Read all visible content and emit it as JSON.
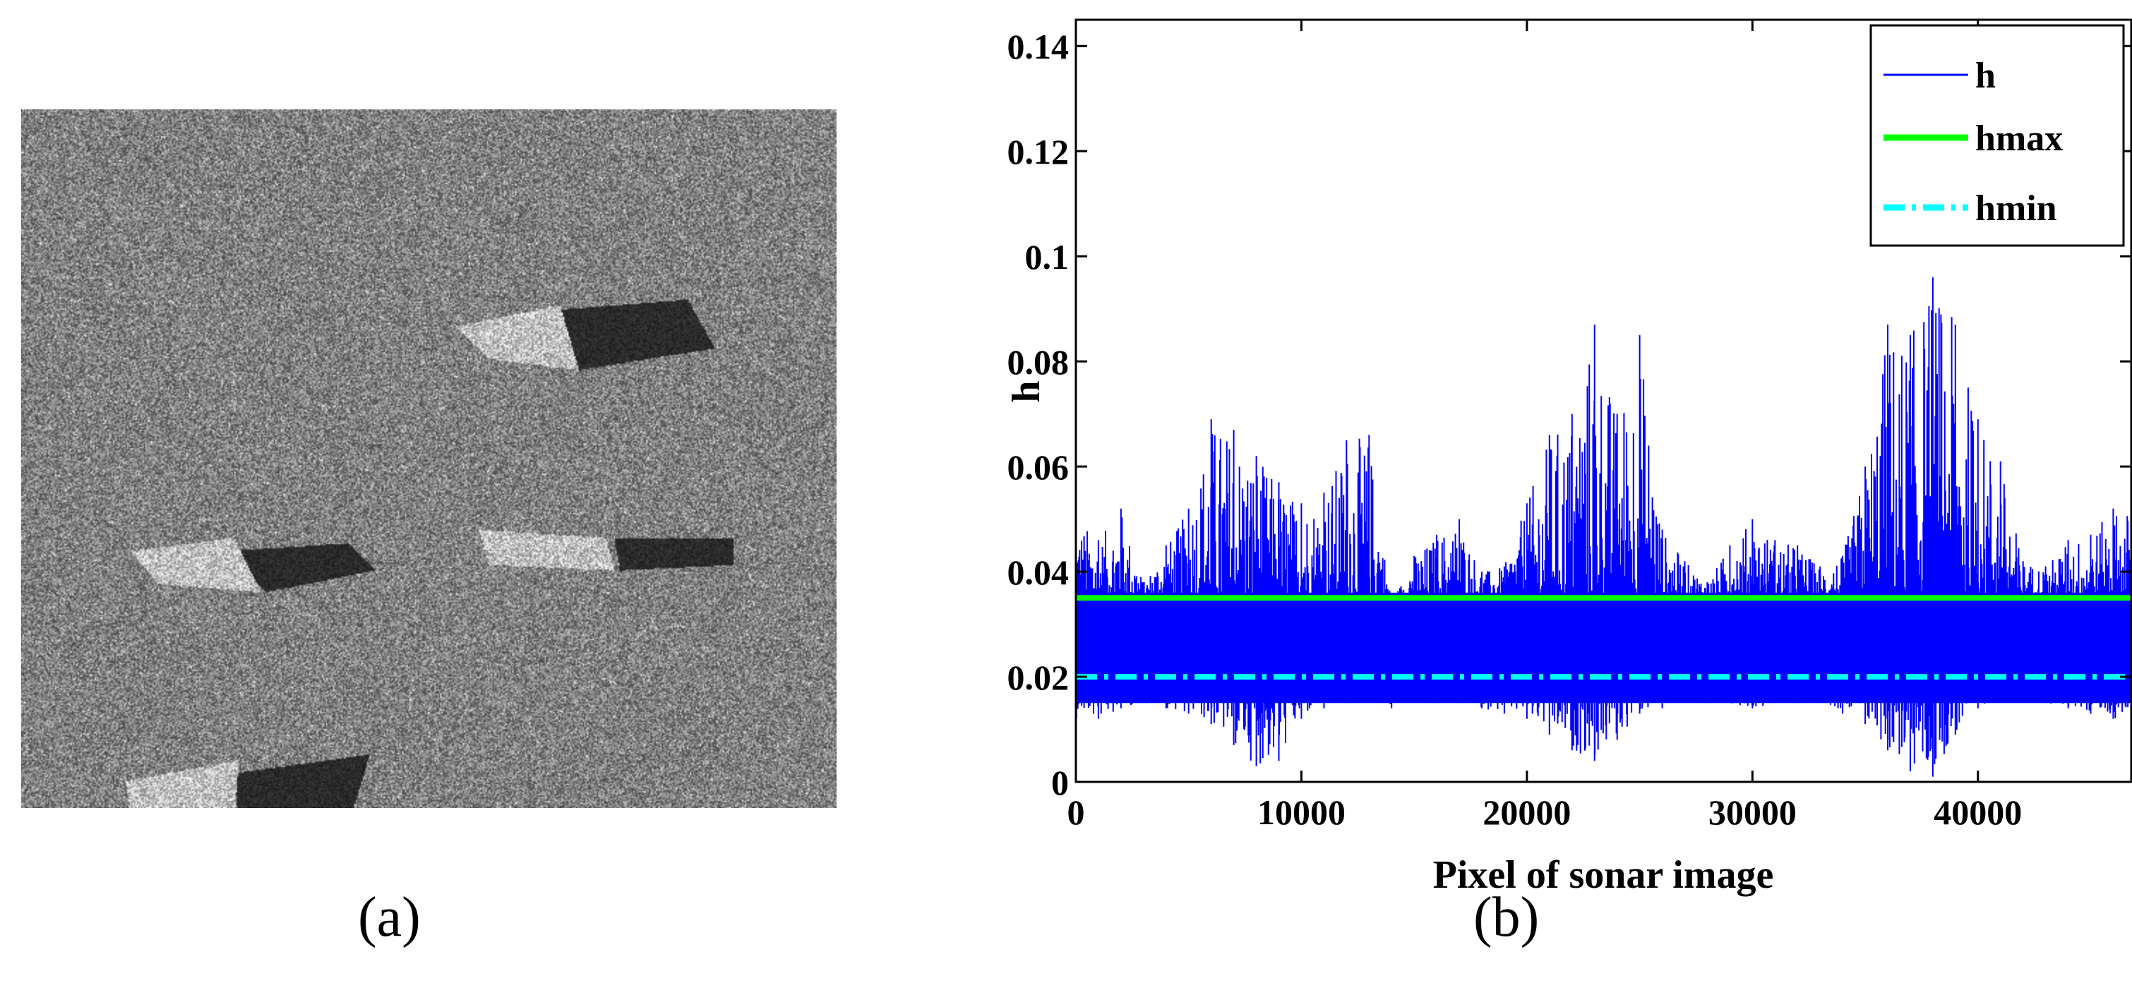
{
  "panels": {
    "a": {
      "caption": "(a)"
    },
    "b": {
      "caption": "(b)"
    }
  },
  "chart_data": {
    "type": "line",
    "title": "",
    "xlabel": "Pixel of sonar image",
    "ylabel": "h",
    "xlim": [
      0,
      46800
    ],
    "ylim": [
      0,
      0.145
    ],
    "xticks": [
      0,
      10000,
      20000,
      30000,
      40000
    ],
    "xtick_labels": [
      "0",
      "10000",
      "20000",
      "30000",
      "40000"
    ],
    "yticks": [
      0,
      0.02,
      0.04,
      0.06,
      0.08,
      0.1,
      0.12,
      0.14
    ],
    "ytick_labels": [
      "0",
      "0.02",
      "0.04",
      "0.06",
      "0.08",
      "0.1",
      "0.12",
      "0.14"
    ],
    "legend_position": "top-right",
    "series": [
      {
        "name": "h",
        "style": "thin-solid",
        "color": "#0000ff",
        "envelope_x": [
          0,
          1000,
          2000,
          3000,
          4000,
          5000,
          6000,
          7000,
          8000,
          9000,
          10000,
          11000,
          12000,
          13000,
          14000,
          15000,
          16000,
          17000,
          18000,
          19000,
          20000,
          21000,
          22000,
          23000,
          24000,
          25000,
          26000,
          27000,
          28000,
          29000,
          30000,
          31000,
          32000,
          33000,
          34000,
          35000,
          36000,
          37000,
          38000,
          39000,
          40000,
          41000,
          42000,
          43000,
          44000,
          45000,
          46000
        ],
        "envelope_upper": [
          0.051,
          0.046,
          0.052,
          0.038,
          0.045,
          0.052,
          0.069,
          0.067,
          0.062,
          0.057,
          0.053,
          0.055,
          0.065,
          0.066,
          0.034,
          0.043,
          0.047,
          0.05,
          0.04,
          0.041,
          0.053,
          0.066,
          0.07,
          0.087,
          0.07,
          0.085,
          0.048,
          0.042,
          0.038,
          0.045,
          0.05,
          0.046,
          0.045,
          0.041,
          0.043,
          0.06,
          0.087,
          0.085,
          0.096,
          0.087,
          0.069,
          0.061,
          0.042,
          0.041,
          0.046,
          0.047,
          0.052
        ],
        "envelope_lower": [
          0.012,
          0.012,
          0.014,
          0.015,
          0.014,
          0.013,
          0.011,
          0.007,
          0.003,
          0.004,
          0.012,
          0.014,
          0.015,
          0.016,
          0.014,
          0.016,
          0.015,
          0.015,
          0.014,
          0.013,
          0.012,
          0.009,
          0.006,
          0.004,
          0.008,
          0.013,
          0.014,
          0.016,
          0.015,
          0.015,
          0.014,
          0.015,
          0.015,
          0.016,
          0.013,
          0.011,
          0.006,
          0.002,
          0.001,
          0.009,
          0.014,
          0.016,
          0.016,
          0.015,
          0.014,
          0.013,
          0.012
        ],
        "dense_band": [
          0.015,
          0.036
        ]
      },
      {
        "name": "hmax",
        "style": "solid",
        "color": "#00ff00",
        "value": 0.035
      },
      {
        "name": "hmin",
        "style": "dash-dot",
        "color": "#00ffff",
        "value": 0.02
      }
    ]
  }
}
